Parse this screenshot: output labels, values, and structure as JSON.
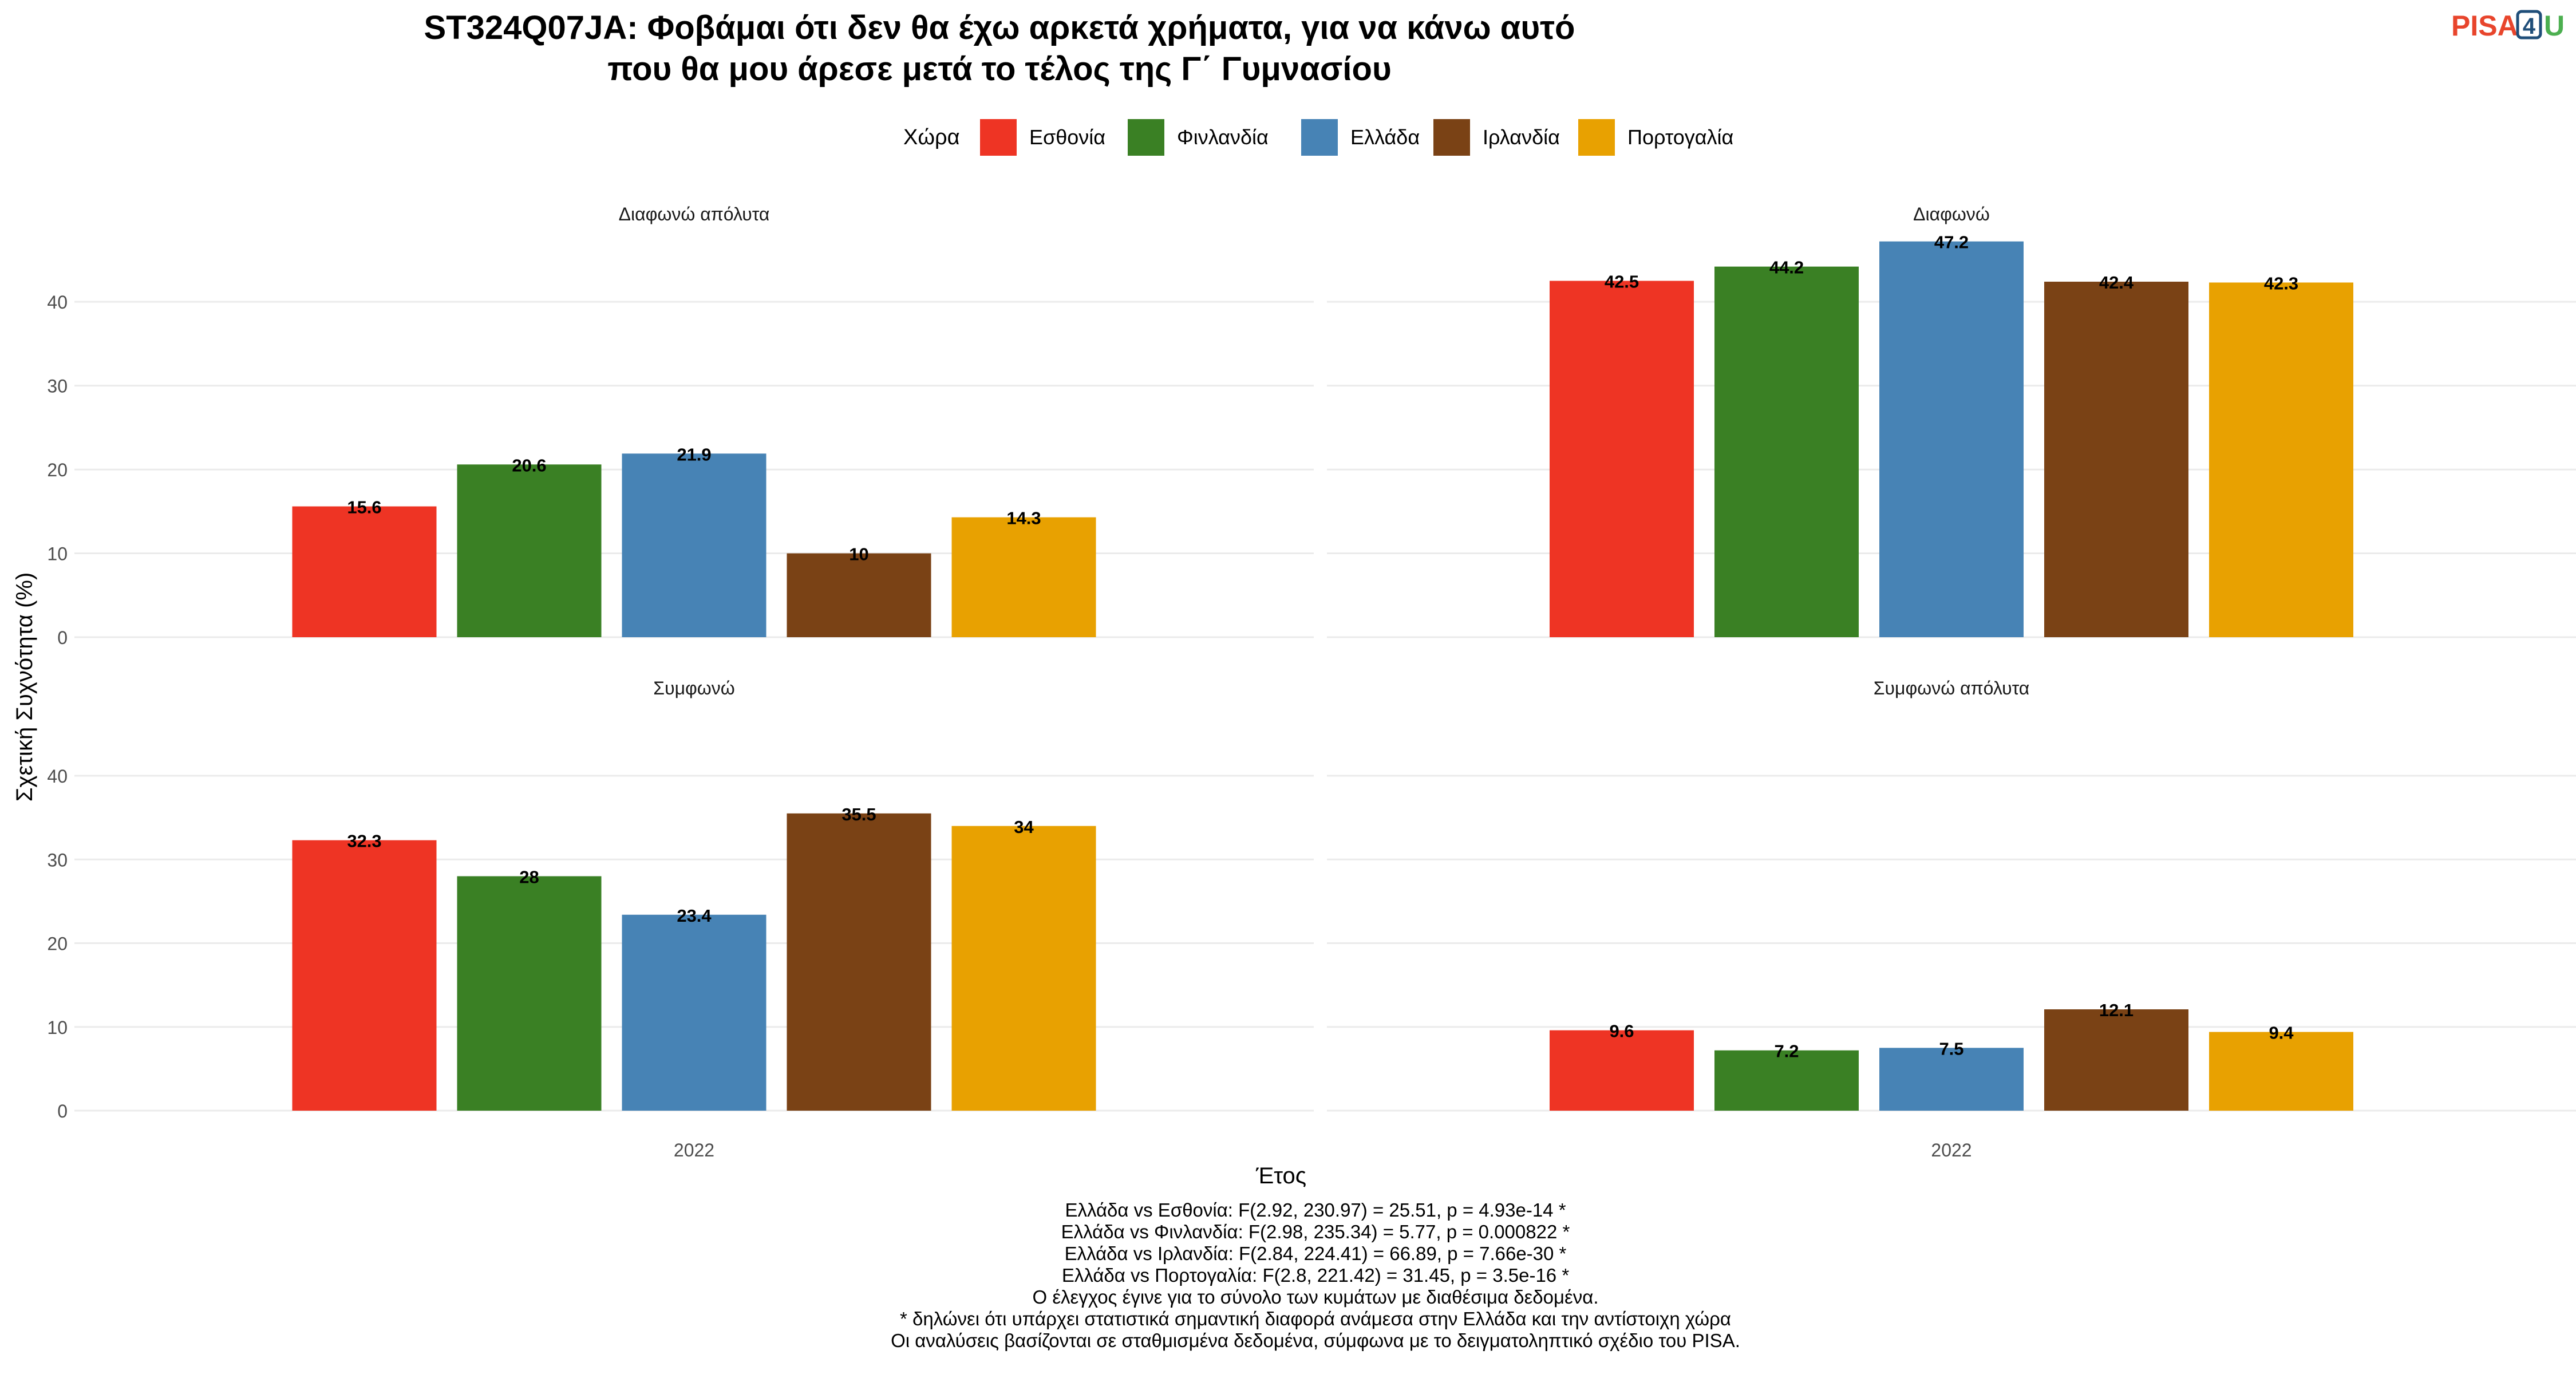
{
  "title_lines": [
    "ST324Q07JA: Φοβάμαι ότι δεν θα έχω αρκετά χρήματα, για να κάνω αυτό",
    "που θα μου άρεσε μετά το τέλος της Γ΄ Γυμνασίου"
  ],
  "logo": {
    "text_part": "PISA",
    "digit": "4",
    "letter": "U"
  },
  "legend": {
    "title": "Χώρα",
    "items": [
      {
        "label": "Εσθονία",
        "color": "#EE3424"
      },
      {
        "label": "Φινλανδία",
        "color": "#3A8024"
      },
      {
        "label": "Ελλάδα",
        "color": "#4783B5"
      },
      {
        "label": "Ιρλανδία",
        "color": "#7A4215"
      },
      {
        "label": "Πορτογαλία",
        "color": "#E8A101"
      }
    ]
  },
  "chart_data": {
    "type": "bar",
    "xlabel": "Έτος",
    "ylabel": "Σχετική Συχνότητα (%)",
    "ylim": [
      0,
      48
    ],
    "yticks": [
      0,
      10,
      20,
      30,
      40
    ],
    "grid": true,
    "legend_position": "top",
    "categories": [
      "2022"
    ],
    "series_names": [
      "Εσθονία",
      "Φινλανδία",
      "Ελλάδα",
      "Ιρλανδία",
      "Πορτογαλία"
    ],
    "panels": [
      {
        "title": "Διαφωνώ απόλυτα",
        "values": [
          15.6,
          20.6,
          21.9,
          10,
          14.3
        ],
        "labels": [
          "15.6",
          "20.6",
          "21.9",
          "10",
          "14.3"
        ]
      },
      {
        "title": "Διαφωνώ",
        "values": [
          42.5,
          44.2,
          47.2,
          42.4,
          42.3
        ],
        "labels": [
          "42.5",
          "44.2",
          "47.2",
          "42.4",
          "42.3"
        ]
      },
      {
        "title": "Συμφωνώ",
        "values": [
          32.3,
          28,
          23.4,
          35.5,
          34
        ],
        "labels": [
          "32.3",
          "28",
          "23.4",
          "35.5",
          "34"
        ]
      },
      {
        "title": "Συμφωνώ απόλυτα",
        "values": [
          9.6,
          7.2,
          7.5,
          12.1,
          9.4
        ],
        "labels": [
          "9.6",
          "7.2",
          "7.5",
          "12.1",
          "9.4"
        ]
      }
    ]
  },
  "footnotes": [
    "Ελλάδα vs Εσθονία: F(2.92, 230.97) = 25.51, p = 4.93e-14 *",
    "Ελλάδα vs Φινλανδία: F(2.98, 235.34) = 5.77, p = 0.000822 *",
    "Ελλάδα vs Ιρλανδία: F(2.84, 224.41) = 66.89, p = 7.66e-30 *",
    "Ελλάδα vs Πορτογαλία: F(2.8, 221.42) = 31.45, p = 3.5e-16 *",
    "Ο έλεγχος έγινε για το σύνολο των κυμάτων με διαθέσιμα δεδομένα.",
    "* δηλώνει ότι υπάρχει στατιστικά σημαντική διαφορά ανάμεσα στην Ελλάδα και την αντίστοιχη χώρα",
    "Οι αναλύσεις βασίζονται σε σταθμισμένα δεδομένα, σύμφωνα με το δειγματοληπτικό σχέδιο του PISA."
  ]
}
